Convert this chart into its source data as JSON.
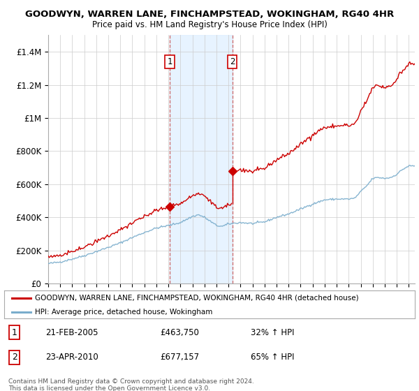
{
  "title": "GOODWYN, WARREN LANE, FINCHAMPSTEAD, WOKINGHAM, RG40 4HR",
  "subtitle": "Price paid vs. HM Land Registry's House Price Index (HPI)",
  "legend_line1": "GOODWYN, WARREN LANE, FINCHAMPSTEAD, WOKINGHAM, RG40 4HR (detached house)",
  "legend_line2": "HPI: Average price, detached house, Wokingham",
  "annotation1_date": "21-FEB-2005",
  "annotation1_price": "£463,750",
  "annotation1_hpi": "32% ↑ HPI",
  "annotation1_year": 2005.12,
  "annotation1_value": 463750,
  "annotation2_date": "23-APR-2010",
  "annotation2_price": "£677,157",
  "annotation2_hpi": "65% ↑ HPI",
  "annotation2_year": 2010.31,
  "annotation2_value": 677157,
  "copyright": "Contains HM Land Registry data © Crown copyright and database right 2024.\nThis data is licensed under the Open Government Licence v3.0.",
  "xmin": 1995,
  "xmax": 2025.5,
  "ymin": 0,
  "ymax": 1500000,
  "yticks": [
    0,
    200000,
    400000,
    600000,
    800000,
    1000000,
    1200000,
    1400000
  ],
  "ytick_labels": [
    "£0",
    "£200K",
    "£400K",
    "£600K",
    "£800K",
    "£1M",
    "£1.2M",
    "£1.4M"
  ],
  "color_red": "#cc0000",
  "color_blue": "#7aadcc",
  "color_vline": "#cc6666",
  "color_shade": "#ddeeff",
  "background_color": "#ffffff"
}
